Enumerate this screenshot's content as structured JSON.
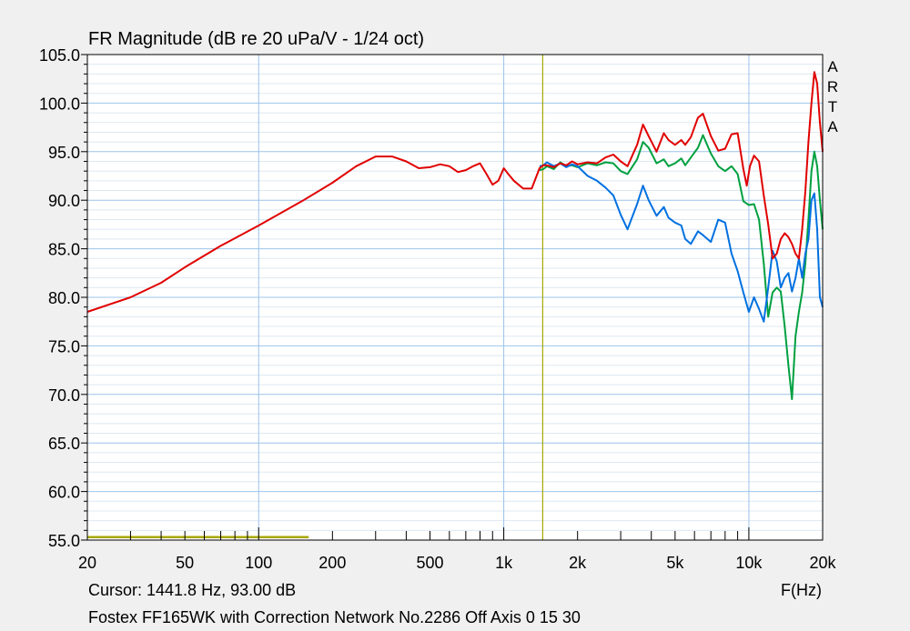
{
  "chart_data": {
    "type": "line",
    "title": "FR Magnitude (dB re 20 uPa/V - 1/24 oct)",
    "xlabel": "F(Hz)",
    "ylabel": "",
    "xscale": "log",
    "xlim": [
      20,
      20000
    ],
    "ylim": [
      55,
      105
    ],
    "grid": true,
    "x_tick_labels": [
      "20",
      "50",
      "100",
      "200",
      "500",
      "1k",
      "2k",
      "5k",
      "10k",
      "20k"
    ],
    "y_tick_labels": [
      "105.0",
      "100.0",
      "95.0",
      "90.0",
      "85.0",
      "80.0",
      "75.0",
      "70.0",
      "65.0",
      "60.0",
      "55.0"
    ],
    "watermark": [
      "A",
      "R",
      "T",
      "A"
    ],
    "cursor": {
      "x": 1441.8,
      "y": 93.0,
      "color": "#a8a800"
    },
    "cursor_label": "Cursor: 1441.8 Hz, 93.00 dB",
    "caption": "Fostex FF165WK with Correction Network No.2286 Off Axis 0 15 30",
    "marker_band": {
      "x": [
        20,
        160
      ],
      "y": 55.3,
      "color": "#a8a800"
    },
    "series": [
      {
        "color": "#e00000",
        "points": [
          [
            20,
            78.5
          ],
          [
            30,
            80
          ],
          [
            40,
            81.5
          ],
          [
            50,
            83.1
          ],
          [
            70,
            85.3
          ],
          [
            100,
            87.4
          ],
          [
            150,
            89.9
          ],
          [
            200,
            91.8
          ],
          [
            250,
            93.5
          ],
          [
            300,
            94.5
          ],
          [
            350,
            94.5
          ],
          [
            400,
            94
          ],
          [
            450,
            93.3
          ],
          [
            500,
            93.4
          ],
          [
            550,
            93.7
          ],
          [
            600,
            93.5
          ],
          [
            650,
            92.9
          ],
          [
            700,
            93.1
          ],
          [
            750,
            93.5
          ],
          [
            800,
            93.8
          ],
          [
            850,
            92.7
          ],
          [
            900,
            91.6
          ],
          [
            950,
            92
          ],
          [
            1000,
            93.3
          ],
          [
            1050,
            92.6
          ],
          [
            1100,
            92
          ],
          [
            1200,
            91.2
          ],
          [
            1300,
            91.2
          ],
          [
            1400,
            93.3
          ],
          [
            1450,
            93.6
          ],
          [
            1500,
            93.6
          ],
          [
            1600,
            93.4
          ],
          [
            1700,
            93.8
          ],
          [
            1800,
            93.6
          ],
          [
            1900,
            94
          ],
          [
            2000,
            93.7
          ],
          [
            2200,
            93.9
          ],
          [
            2400,
            93.8
          ],
          [
            2600,
            94.4
          ],
          [
            2800,
            94.7
          ],
          [
            3000,
            94
          ],
          [
            3200,
            93.5
          ],
          [
            3500,
            95.7
          ],
          [
            3700,
            97.8
          ],
          [
            3900,
            96.6
          ],
          [
            4200,
            95
          ],
          [
            4500,
            96.9
          ],
          [
            4700,
            96.2
          ],
          [
            5000,
            95.7
          ],
          [
            5300,
            96.2
          ],
          [
            5500,
            95.7
          ],
          [
            5800,
            96.5
          ],
          [
            6200,
            98.5
          ],
          [
            6500,
            98.9
          ],
          [
            7000,
            96.6
          ],
          [
            7500,
            95.1
          ],
          [
            8000,
            95.3
          ],
          [
            8500,
            96.8
          ],
          [
            9000,
            96.9
          ],
          [
            9500,
            93.2
          ],
          [
            9800,
            91.5
          ],
          [
            10100,
            93.5
          ],
          [
            10500,
            94.6
          ],
          [
            11000,
            94
          ],
          [
            11500,
            90.5
          ],
          [
            12000,
            87.5
          ],
          [
            12500,
            84
          ],
          [
            13000,
            84.5
          ],
          [
            13500,
            86
          ],
          [
            14000,
            86.6
          ],
          [
            14500,
            86.2
          ],
          [
            15000,
            85.5
          ],
          [
            15500,
            84.5
          ],
          [
            16000,
            84
          ],
          [
            16500,
            87
          ],
          [
            17000,
            90.9
          ],
          [
            17500,
            96
          ],
          [
            18000,
            100
          ],
          [
            18500,
            103.2
          ],
          [
            19000,
            102
          ],
          [
            19500,
            98
          ],
          [
            20000,
            95
          ]
        ]
      },
      {
        "color": "#00a040",
        "points": [
          [
            1400,
            93.1
          ],
          [
            1450,
            93.2
          ],
          [
            1500,
            93.5
          ],
          [
            1600,
            93.2
          ],
          [
            1700,
            93.9
          ],
          [
            1800,
            93.5
          ],
          [
            1900,
            93.6
          ],
          [
            2000,
            93.4
          ],
          [
            2200,
            93.8
          ],
          [
            2400,
            93.6
          ],
          [
            2600,
            93.9
          ],
          [
            2800,
            93.8
          ],
          [
            3000,
            93
          ],
          [
            3200,
            92.7
          ],
          [
            3500,
            94.2
          ],
          [
            3700,
            96
          ],
          [
            3900,
            95.4
          ],
          [
            4200,
            93.8
          ],
          [
            4500,
            94.2
          ],
          [
            4700,
            93.5
          ],
          [
            5000,
            93.8
          ],
          [
            5300,
            94.3
          ],
          [
            5500,
            93.6
          ],
          [
            5800,
            94.4
          ],
          [
            6200,
            95.4
          ],
          [
            6500,
            96.7
          ],
          [
            7000,
            94.8
          ],
          [
            7500,
            93.5
          ],
          [
            8000,
            93
          ],
          [
            8500,
            93.5
          ],
          [
            9000,
            92.7
          ],
          [
            9500,
            89.9
          ],
          [
            10000,
            89.5
          ],
          [
            10500,
            89.6
          ],
          [
            11000,
            88
          ],
          [
            11500,
            83.5
          ],
          [
            12000,
            78
          ],
          [
            12500,
            80.5
          ],
          [
            13000,
            81
          ],
          [
            13500,
            80.6
          ],
          [
            14000,
            77
          ],
          [
            14500,
            73
          ],
          [
            15000,
            69.5
          ],
          [
            15500,
            76
          ],
          [
            16000,
            78.5
          ],
          [
            16500,
            80.5
          ],
          [
            17000,
            83.5
          ],
          [
            17500,
            88
          ],
          [
            18000,
            93
          ],
          [
            18500,
            95
          ],
          [
            19000,
            93.5
          ],
          [
            19500,
            90
          ],
          [
            20000,
            87
          ]
        ]
      },
      {
        "color": "#0070e0",
        "points": [
          [
            1400,
            93.5
          ],
          [
            1450,
            93.6
          ],
          [
            1500,
            93.9
          ],
          [
            1600,
            93.5
          ],
          [
            1700,
            93.8
          ],
          [
            1800,
            93.4
          ],
          [
            1900,
            93.7
          ],
          [
            2000,
            93.5
          ],
          [
            2200,
            92.5
          ],
          [
            2400,
            92
          ],
          [
            2600,
            91.3
          ],
          [
            2800,
            90.5
          ],
          [
            3000,
            88.5
          ],
          [
            3200,
            87
          ],
          [
            3500,
            89.6
          ],
          [
            3700,
            91.5
          ],
          [
            3900,
            90
          ],
          [
            4200,
            88.4
          ],
          [
            4500,
            89.3
          ],
          [
            4700,
            88.2
          ],
          [
            5000,
            87.7
          ],
          [
            5300,
            87.4
          ],
          [
            5500,
            86
          ],
          [
            5800,
            85.5
          ],
          [
            6200,
            86.8
          ],
          [
            6500,
            86.4
          ],
          [
            7000,
            85.7
          ],
          [
            7500,
            88
          ],
          [
            8000,
            87.7
          ],
          [
            8500,
            84.5
          ],
          [
            9000,
            82.7
          ],
          [
            9500,
            80.5
          ],
          [
            10000,
            78.5
          ],
          [
            10500,
            80
          ],
          [
            11000,
            78.8
          ],
          [
            11500,
            77.5
          ],
          [
            12000,
            81
          ],
          [
            12500,
            84.8
          ],
          [
            13000,
            83.7
          ],
          [
            13500,
            81
          ],
          [
            14000,
            82
          ],
          [
            14500,
            82.5
          ],
          [
            15000,
            80.6
          ],
          [
            15500,
            82
          ],
          [
            16000,
            84
          ],
          [
            16500,
            82
          ],
          [
            17000,
            84.5
          ],
          [
            17500,
            86
          ],
          [
            18000,
            90
          ],
          [
            18500,
            90.7
          ],
          [
            19000,
            87
          ],
          [
            19500,
            80
          ],
          [
            20000,
            79
          ]
        ]
      }
    ]
  }
}
